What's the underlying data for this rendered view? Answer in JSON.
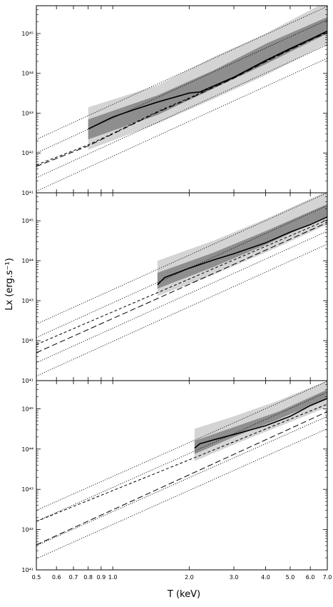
{
  "chart_data": [
    {
      "type": "line",
      "panel": "top",
      "x_scale": "log",
      "y_scale": "log",
      "xlim": [
        0.5,
        7.0
      ],
      "ylim": [
        1e+41,
        5e+45
      ],
      "y_ticks": [
        {
          "value": 1e+41,
          "label": "10⁴¹"
        },
        {
          "value": 1e+42,
          "label": "10⁴²"
        },
        {
          "value": 1e+43,
          "label": "10⁴³"
        },
        {
          "value": 1e+44,
          "label": "10⁴⁴"
        },
        {
          "value": 1e+45,
          "label": "10⁴⁵"
        }
      ],
      "band_outer": {
        "x": [
          0.8,
          1.5,
          2.5,
          4.0,
          7.0
        ],
        "y_low": [
          1.2e+42,
          5.5e+42,
          2.3e+43,
          9e+43,
          5.5e+44
        ],
        "y_high": [
          1.4e+43,
          5e+43,
          2.6e+44,
          1e+45,
          6.5e+45
        ]
      },
      "band_inner": {
        "x": [
          0.8,
          1.5,
          2.5,
          4.0,
          7.0
        ],
        "y_low": [
          2.2e+42,
          9e+42,
          4.2e+43,
          1.7e+44,
          1e+45
        ],
        "y_high": [
          7e+42,
          2.8e+43,
          1.2e+44,
          5.5e+44,
          2.6e+45
        ]
      },
      "series": [
        {
          "style": "solid",
          "x": [
            0.8,
            0.9,
            1.0,
            1.2,
            1.5,
            2.0,
            2.2,
            3.0,
            4.0,
            5.0,
            6.0,
            7.0
          ],
          "y": [
            4e+42,
            5.8e+42,
            8e+42,
            1.2e+43,
            1.9e+43,
            3.2e+43,
            3.4e+43,
            8e+43,
            2.1e+44,
            4.2e+44,
            7.2e+44,
            1.15e+45
          ]
        },
        {
          "style": "dashed",
          "x": [
            0.5,
            0.8,
            1.0,
            1.5,
            2.0,
            3.0,
            4.0,
            5.0,
            6.0,
            7.0
          ],
          "y": [
            5e+41,
            1.6e+42,
            3.1e+42,
            1.1e+43,
            2.4e+43,
            7.8e+43,
            2e+44,
            4e+44,
            7e+44,
            1.1e+45
          ]
        },
        {
          "style": "long-dashed",
          "x": [
            0.5,
            0.8,
            1.0,
            1.5,
            2.0,
            3.0,
            4.0,
            5.0,
            6.0,
            7.0
          ],
          "y": [
            4.6e+41,
            1.5e+42,
            3e+42,
            1.05e+43,
            2.3e+43,
            7.6e+43,
            1.95e+44,
            3.9e+44,
            6.8e+44,
            1.05e+45
          ]
        },
        {
          "style": "dotted",
          "x": [
            0.5,
            7.0
          ],
          "y": [
            2.2e+42,
            4.8e+45
          ]
        },
        {
          "style": "dotted",
          "x": [
            0.5,
            7.0
          ],
          "y": [
            1e+42,
            2.2e+45
          ]
        },
        {
          "style": "dotted",
          "x": [
            0.5,
            7.0
          ],
          "y": [
            2.4e+41,
            5.2e+44
          ]
        },
        {
          "style": "dotted",
          "x": [
            0.5,
            7.0
          ],
          "y": [
            1.1e+41,
            2.4e+44
          ]
        }
      ]
    },
    {
      "type": "line",
      "panel": "middle",
      "x_scale": "log",
      "y_scale": "log",
      "xlim": [
        0.5,
        7.0
      ],
      "ylim": [
        1e+41,
        5e+45
      ],
      "y_ticks": [
        {
          "value": 1e+41,
          "label": "10⁴¹"
        },
        {
          "value": 1e+42,
          "label": "10⁴²"
        },
        {
          "value": 1e+43,
          "label": "10⁴³"
        },
        {
          "value": 1e+44,
          "label": "10⁴⁴"
        },
        {
          "value": 1e+45,
          "label": "10⁴⁵"
        }
      ],
      "band_outer": {
        "x": [
          1.5,
          2.5,
          4.0,
          7.0
        ],
        "y_low": [
          1.3e+43,
          4.5e+43,
          1.6e+44,
          8e+44
        ],
        "y_high": [
          1e+44,
          3.2e+44,
          1.1e+45,
          5.5e+45
        ]
      },
      "band_inner": {
        "x": [
          1.5,
          2.5,
          4.0,
          7.0
        ],
        "y_low": [
          2e+43,
          7e+43,
          2.5e+44,
          1.3e+45
        ],
        "y_high": [
          5e+43,
          1.6e+44,
          5.5e+44,
          2.6e+45
        ]
      },
      "series": [
        {
          "style": "solid",
          "x": [
            1.5,
            1.6,
            2.0,
            2.5,
            3.0,
            4.0,
            5.0,
            6.0,
            7.0
          ],
          "y": [
            2.5e+43,
            3.8e+43,
            6.5e+43,
            1.05e+44,
            1.5e+44,
            2.8e+44,
            5.2e+44,
            8e+44,
            1.25e+45
          ]
        },
        {
          "style": "dashed",
          "x": [
            0.5,
            7.0
          ],
          "y": [
            8e+41,
            1.05e+45
          ]
        },
        {
          "style": "long-dashed",
          "x": [
            0.5,
            7.0
          ],
          "y": [
            5e+41,
            9e+44
          ]
        },
        {
          "style": "dotted",
          "x": [
            0.5,
            7.0
          ],
          "y": [
            2.6e+42,
            5e+45
          ]
        },
        {
          "style": "dotted",
          "x": [
            0.5,
            7.0
          ],
          "y": [
            1.2e+42,
            2.4e+45
          ]
        },
        {
          "style": "dotted",
          "x": [
            0.5,
            7.0
          ],
          "y": [
            2.8e+41,
            5.5e+44
          ]
        },
        {
          "style": "dotted",
          "x": [
            0.5,
            7.0
          ],
          "y": [
            1.3e+41,
            2.6e+44
          ]
        }
      ]
    },
    {
      "type": "line",
      "panel": "bottom",
      "x_scale": "log",
      "y_scale": "log",
      "xlim": [
        0.5,
        7.0
      ],
      "ylim": [
        1e+41,
        5e+45
      ],
      "x_ticks": [
        {
          "value": 0.5,
          "label": "0.5"
        },
        {
          "value": 0.6,
          "label": "0.6"
        },
        {
          "value": 0.7,
          "label": "0.7"
        },
        {
          "value": 0.8,
          "label": "0.8"
        },
        {
          "value": 0.9,
          "label": "0.9"
        },
        {
          "value": 1.0,
          "label": "1.0"
        },
        {
          "value": 2.0,
          "label": "2.0"
        },
        {
          "value": 3.0,
          "label": "3.0"
        },
        {
          "value": 4.0,
          "label": "4.0"
        },
        {
          "value": 5.0,
          "label": "5.0"
        },
        {
          "value": 6.0,
          "label": "6.0"
        },
        {
          "value": 7.0,
          "label": "7.0"
        }
      ],
      "y_ticks": [
        {
          "value": 1e+41,
          "label": "10⁴¹"
        },
        {
          "value": 1e+42,
          "label": "10⁴²"
        },
        {
          "value": 1e+43,
          "label": "10⁴³"
        },
        {
          "value": 1e+44,
          "label": "10⁴⁴"
        },
        {
          "value": 1e+45,
          "label": "10⁴⁵"
        }
      ],
      "band_outer": {
        "x": [
          2.1,
          3.0,
          4.5,
          7.0
        ],
        "y_low": [
          5e+43,
          1.3e+44,
          3.6e+44,
          1.1e+45
        ],
        "y_high": [
          3.2e+44,
          6.5e+44,
          1.6e+45,
          5e+45
        ]
      },
      "band_inner": {
        "x": [
          2.1,
          3.0,
          4.5,
          7.0
        ],
        "y_low": [
          7.5e+43,
          2e+44,
          5.5e+44,
          1.8e+45
        ],
        "y_high": [
          1.6e+44,
          3.5e+44,
          8.5e+44,
          3e+45
        ]
      },
      "series": [
        {
          "style": "solid",
          "x": [
            2.1,
            2.2,
            2.5,
            3.0,
            3.5,
            4.0,
            5.0,
            6.0,
            7.0
          ],
          "y": [
            1.05e+44,
            1.35e+44,
            1.7e+44,
            2.3e+44,
            3e+44,
            3.8e+44,
            6.5e+44,
            1.2e+45,
            1.8e+45
          ]
        },
        {
          "style": "dashed",
          "x": [
            0.5,
            7.0
          ],
          "y": [
            1.6e+42,
            1.3e+45
          ]
        },
        {
          "style": "long-dashed",
          "x": [
            0.5,
            7.0
          ],
          "y": [
            4.2e+41,
            8.5e+44
          ]
        },
        {
          "style": "dotted",
          "x": [
            0.5,
            7.0
          ],
          "y": [
            3e+42,
            4.8e+45
          ]
        },
        {
          "style": "dotted",
          "x": [
            0.5,
            7.0
          ],
          "y": [
            1.6e+42,
            2.6e+45
          ]
        },
        {
          "style": "dotted",
          "x": [
            0.5,
            7.0
          ],
          "y": [
            4e+41,
            6.5e+44
          ]
        },
        {
          "style": "dotted",
          "x": [
            0.5,
            7.0
          ],
          "y": [
            1.9e+41,
            3.2e+44
          ]
        }
      ]
    }
  ],
  "xlabel": "T (keV)",
  "ylabel": "Lx (erg.s⁻¹)",
  "colors": {
    "band_outer": "#d4d4d4",
    "band_inner": "#8e8e8e",
    "line": "#000000",
    "frame": "#000000"
  }
}
